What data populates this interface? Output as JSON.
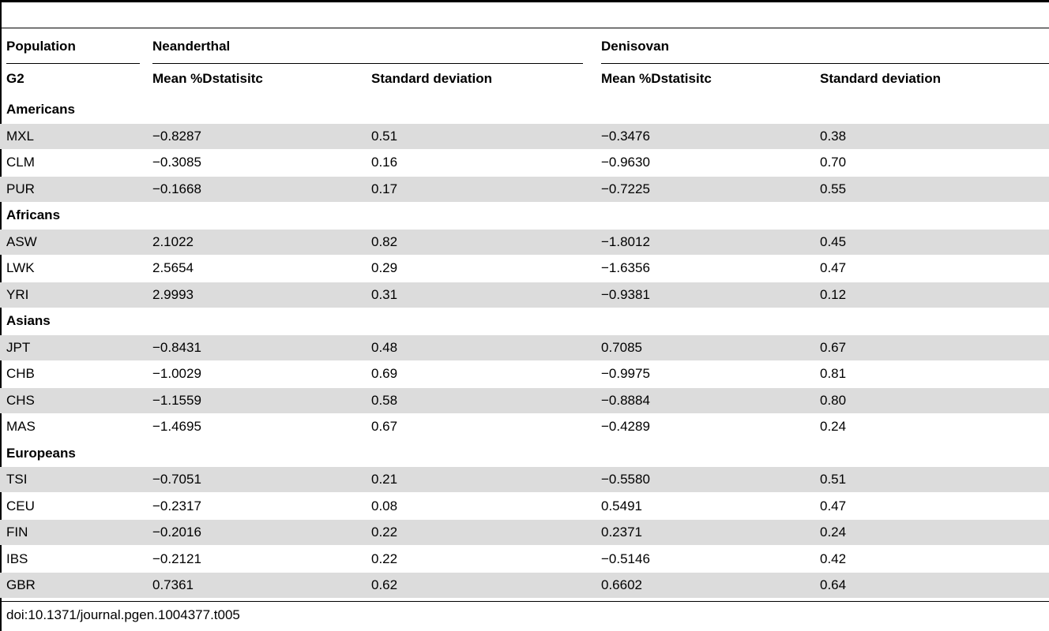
{
  "header": {
    "population": "Population",
    "neanderthal": "Neanderthal",
    "denisovan": "Denisovan",
    "g2": "G2",
    "mean1": "Mean %Dstatisitc",
    "sd1": "Standard deviation",
    "mean2": "Mean %Dstatisitc",
    "sd2": "Standard deviation"
  },
  "rows": [
    {
      "type": "group",
      "label": "Americans"
    },
    {
      "type": "data",
      "pop": "MXL",
      "nm": "−0.8287",
      "nsd": "0.51",
      "dm": "−0.3476",
      "dsd": "0.38"
    },
    {
      "type": "data",
      "pop": "CLM",
      "nm": "−0.3085",
      "nsd": "0.16",
      "dm": "−0.9630",
      "dsd": "0.70"
    },
    {
      "type": "data",
      "pop": "PUR",
      "nm": "−0.1668",
      "nsd": "0.17",
      "dm": "−0.7225",
      "dsd": "0.55"
    },
    {
      "type": "group",
      "label": "Africans"
    },
    {
      "type": "data",
      "pop": "ASW",
      "nm": "2.1022",
      "nsd": "0.82",
      "dm": "−1.8012",
      "dsd": "0.45"
    },
    {
      "type": "data",
      "pop": "LWK",
      "nm": "2.5654",
      "nsd": "0.29",
      "dm": "−1.6356",
      "dsd": "0.47"
    },
    {
      "type": "data",
      "pop": "YRI",
      "nm": "2.9993",
      "nsd": "0.31",
      "dm": "−0.9381",
      "dsd": "0.12"
    },
    {
      "type": "group",
      "label": "Asians"
    },
    {
      "type": "data",
      "pop": "JPT",
      "nm": "−0.8431",
      "nsd": "0.48",
      "dm": "0.7085",
      "dsd": "0.67"
    },
    {
      "type": "data",
      "pop": "CHB",
      "nm": "−1.0029",
      "nsd": "0.69",
      "dm": "−0.9975",
      "dsd": "0.81"
    },
    {
      "type": "data",
      "pop": "CHS",
      "nm": "−1.1559",
      "nsd": "0.58",
      "dm": "−0.8884",
      "dsd": "0.80"
    },
    {
      "type": "data",
      "pop": "MAS",
      "nm": "−1.4695",
      "nsd": "0.67",
      "dm": "−0.4289",
      "dsd": "0.24"
    },
    {
      "type": "group",
      "label": "Europeans"
    },
    {
      "type": "data",
      "pop": "TSI",
      "nm": "−0.7051",
      "nsd": "0.21",
      "dm": "−0.5580",
      "dsd": "0.51"
    },
    {
      "type": "data",
      "pop": "CEU",
      "nm": "−0.2317",
      "nsd": "0.08",
      "dm": "0.5491",
      "dsd": "0.47"
    },
    {
      "type": "data",
      "pop": "FIN",
      "nm": "−0.2016",
      "nsd": "0.22",
      "dm": "0.2371",
      "dsd": "0.24"
    },
    {
      "type": "data",
      "pop": "IBS",
      "nm": "−0.2121",
      "nsd": "0.22",
      "dm": "−0.5146",
      "dsd": "0.42"
    },
    {
      "type": "data",
      "pop": "GBR",
      "nm": "0.7361",
      "nsd": "0.62",
      "dm": "0.6602",
      "dsd": "0.64"
    }
  ],
  "footer": "doi:10.1371/journal.pgen.1004377.t005"
}
